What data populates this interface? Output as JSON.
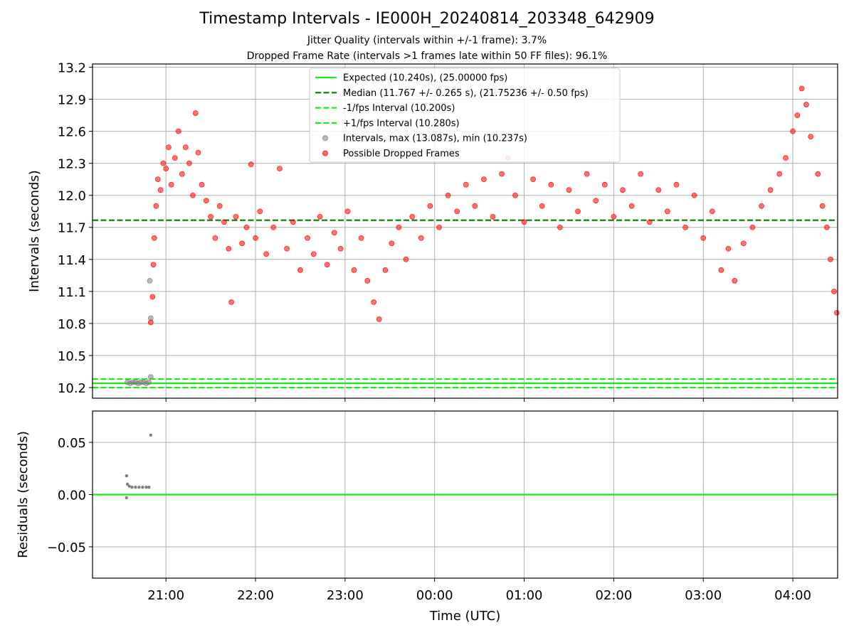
{
  "chart_data": [
    {
      "type": "scatter",
      "title": "Timestamp Intervals - IE000H_20240814_203348_642909",
      "subtitle_lines": [
        "Jitter Quality (intervals within +/-1 frame): 3.7%",
        "Dropped Frame Rate (intervals >1 frames late within 50 FF files): 96.1%"
      ],
      "xlabel": "",
      "ylabel": "Intervals (seconds)",
      "x_unit": "hours (UTC), continuing past midnight",
      "xlim": [
        20.18,
        28.5
      ],
      "ylim": [
        10.1,
        13.23
      ],
      "grid": true,
      "legend_position": "top-center",
      "yticks": [
        10.2,
        10.5,
        10.8,
        11.1,
        11.4,
        11.7,
        12.0,
        12.3,
        12.6,
        12.9,
        13.2
      ],
      "ytick_labels": [
        "10.2",
        "10.5",
        "10.8",
        "11.1",
        "11.4",
        "11.7",
        "12.0",
        "12.3",
        "12.6",
        "12.9",
        "13.2"
      ],
      "xticks": [
        21,
        22,
        23,
        24,
        25,
        26,
        27,
        28
      ],
      "hlines": [
        {
          "name": "Expected (10.240s), (25.00000 fps)",
          "y": 10.24,
          "color": "#1aeb1a",
          "style": "solid"
        },
        {
          "name": "Median (11.767 +/- 0.265 s), (21.75236 +/- 0.50 fps)",
          "y": 11.767,
          "color": "#007f00",
          "style": "dashed"
        },
        {
          "name": "-1/fps Interval (10.200s)",
          "y": 10.2,
          "color": "#1aeb1a",
          "style": "dashed"
        },
        {
          "name": "+1/fps Interval (10.280s)",
          "y": 10.28,
          "color": "#1aeb1a",
          "style": "dashed"
        }
      ],
      "series": [
        {
          "name": "Intervals, max (13.087s), min (10.237s)",
          "color": "#808080",
          "points": [
            [
              20.57,
              10.25
            ],
            [
              20.6,
              10.24
            ],
            [
              20.63,
              10.25
            ],
            [
              20.66,
              10.25
            ],
            [
              20.69,
              10.24
            ],
            [
              20.72,
              10.25
            ],
            [
              20.75,
              10.25
            ],
            [
              20.78,
              10.24
            ],
            [
              20.81,
              10.25
            ],
            [
              20.83,
              10.3
            ],
            [
              20.83,
              10.85
            ],
            [
              20.82,
              11.2
            ]
          ]
        },
        {
          "name": "Possible Dropped Frames",
          "color": "#ff0000",
          "points": [
            [
              20.83,
              10.81
            ],
            [
              20.85,
              11.05
            ],
            [
              20.86,
              11.35
            ],
            [
              20.87,
              11.6
            ],
            [
              20.89,
              11.9
            ],
            [
              20.91,
              12.15
            ],
            [
              20.94,
              12.05
            ],
            [
              20.97,
              12.3
            ],
            [
              21.0,
              12.25
            ],
            [
              21.03,
              12.45
            ],
            [
              21.06,
              12.1
            ],
            [
              21.1,
              12.35
            ],
            [
              21.14,
              12.6
            ],
            [
              21.18,
              12.2
            ],
            [
              21.22,
              12.45
            ],
            [
              21.26,
              12.3
            ],
            [
              21.3,
              12.0
            ],
            [
              21.33,
              12.77
            ],
            [
              21.36,
              12.4
            ],
            [
              21.4,
              12.1
            ],
            [
              21.45,
              11.95
            ],
            [
              21.5,
              11.8
            ],
            [
              21.55,
              11.6
            ],
            [
              21.6,
              11.9
            ],
            [
              21.65,
              11.75
            ],
            [
              21.7,
              11.5
            ],
            [
              21.73,
              11.0
            ],
            [
              21.78,
              11.8
            ],
            [
              21.85,
              11.55
            ],
            [
              21.9,
              11.7
            ],
            [
              21.95,
              12.29
            ],
            [
              22.0,
              11.6
            ],
            [
              22.05,
              11.85
            ],
            [
              22.12,
              11.45
            ],
            [
              22.2,
              11.7
            ],
            [
              22.27,
              12.25
            ],
            [
              22.35,
              11.5
            ],
            [
              22.42,
              11.75
            ],
            [
              22.5,
              11.3
            ],
            [
              22.58,
              11.6
            ],
            [
              22.65,
              11.45
            ],
            [
              22.72,
              11.8
            ],
            [
              22.8,
              11.35
            ],
            [
              22.88,
              11.65
            ],
            [
              22.95,
              11.5
            ],
            [
              23.03,
              11.85
            ],
            [
              23.1,
              11.3
            ],
            [
              23.18,
              11.6
            ],
            [
              23.25,
              11.2
            ],
            [
              23.32,
              11.0
            ],
            [
              23.38,
              10.84
            ],
            [
              23.45,
              11.3
            ],
            [
              23.52,
              11.55
            ],
            [
              23.6,
              11.7
            ],
            [
              23.68,
              11.4
            ],
            [
              23.75,
              11.8
            ],
            [
              23.85,
              11.6
            ],
            [
              23.95,
              11.9
            ],
            [
              24.05,
              11.7
            ],
            [
              24.15,
              12.0
            ],
            [
              24.25,
              11.85
            ],
            [
              24.35,
              12.1
            ],
            [
              24.45,
              11.9
            ],
            [
              24.55,
              12.15
            ],
            [
              24.65,
              11.8
            ],
            [
              24.75,
              12.2
            ],
            [
              24.82,
              12.35
            ],
            [
              24.9,
              12.0
            ],
            [
              25.0,
              11.75
            ],
            [
              25.1,
              12.15
            ],
            [
              25.2,
              11.9
            ],
            [
              25.3,
              12.1
            ],
            [
              25.4,
              11.7
            ],
            [
              25.5,
              12.05
            ],
            [
              25.6,
              11.85
            ],
            [
              25.7,
              12.2
            ],
            [
              25.8,
              11.95
            ],
            [
              25.9,
              12.1
            ],
            [
              26.0,
              11.8
            ],
            [
              26.1,
              12.05
            ],
            [
              26.2,
              11.9
            ],
            [
              26.3,
              12.2
            ],
            [
              26.4,
              11.75
            ],
            [
              26.5,
              12.05
            ],
            [
              26.6,
              11.85
            ],
            [
              26.7,
              12.1
            ],
            [
              26.8,
              11.7
            ],
            [
              26.9,
              12.0
            ],
            [
              27.0,
              11.6
            ],
            [
              27.1,
              11.85
            ],
            [
              27.2,
              11.3
            ],
            [
              27.28,
              11.5
            ],
            [
              27.35,
              11.2
            ],
            [
              27.45,
              11.55
            ],
            [
              27.55,
              11.7
            ],
            [
              27.65,
              11.9
            ],
            [
              27.75,
              12.05
            ],
            [
              27.85,
              12.2
            ],
            [
              27.92,
              12.35
            ],
            [
              28.0,
              12.6
            ],
            [
              28.05,
              12.75
            ],
            [
              28.1,
              13.0
            ],
            [
              28.15,
              12.85
            ],
            [
              28.2,
              12.55
            ],
            [
              28.28,
              12.2
            ],
            [
              28.33,
              11.9
            ],
            [
              28.38,
              11.7
            ],
            [
              28.42,
              11.4
            ],
            [
              28.46,
              11.1
            ],
            [
              28.49,
              10.9
            ]
          ]
        }
      ]
    },
    {
      "type": "scatter",
      "xlabel": "Time (UTC)",
      "ylabel": "Residuals (seconds)",
      "xlim": [
        20.18,
        28.5
      ],
      "ylim": [
        -0.08,
        0.08
      ],
      "grid": true,
      "yticks": [
        0.05,
        0.0,
        -0.05
      ],
      "ytick_labels": [
        "0.05",
        "0.00",
        "−0.05"
      ],
      "xticks": [
        21,
        22,
        23,
        24,
        25,
        26,
        27,
        28
      ],
      "xtick_labels": [
        "21:00",
        "22:00",
        "23:00",
        "00:00",
        "01:00",
        "02:00",
        "03:00",
        "04:00"
      ],
      "hlines": [
        {
          "y": 0.0,
          "color": "#1aeb1a",
          "style": "solid"
        }
      ],
      "series": [
        {
          "color": "#808080",
          "points": [
            [
              20.56,
              0.018
            ],
            [
              20.56,
              -0.003
            ],
            [
              20.57,
              0.01
            ],
            [
              20.59,
              0.008
            ],
            [
              20.62,
              0.007
            ],
            [
              20.66,
              0.007
            ],
            [
              20.7,
              0.007
            ],
            [
              20.74,
              0.007
            ],
            [
              20.78,
              0.007
            ],
            [
              20.81,
              0.007
            ],
            [
              20.83,
              0.057
            ]
          ]
        }
      ]
    }
  ]
}
